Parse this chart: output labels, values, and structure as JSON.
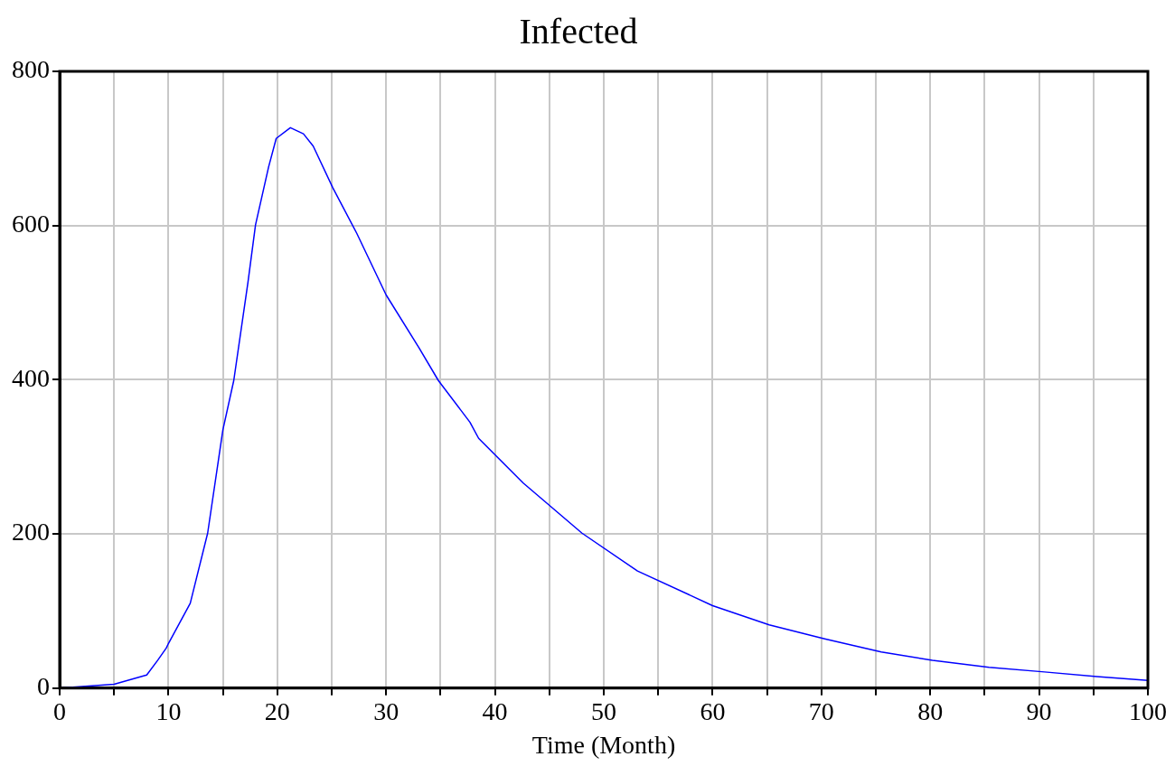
{
  "chart_data": {
    "type": "line",
    "title": "Infected",
    "xlabel": "Time (Month)",
    "x": [
      0,
      5,
      8,
      9,
      9.8,
      10,
      12,
      13.6,
      15,
      16,
      17.3,
      18,
      19.2,
      19.9,
      21.2,
      22.4,
      23.3,
      25.1,
      27.3,
      30,
      33,
      34.8,
      37.7,
      38.5,
      42.6,
      48,
      53.1,
      60,
      65.2,
      70.3,
      75.5,
      80.2,
      85.4,
      90.5,
      95.3,
      100
    ],
    "series": [
      {
        "color": "#0000ff",
        "values": [
          0,
          5,
          17,
          36,
          52,
          58,
          110,
          201,
          335,
          399,
          526,
          601,
          676,
          713,
          727,
          719,
          703,
          649,
          590,
          510,
          442,
          399,
          345,
          324,
          266,
          201,
          152,
          107,
          82,
          64,
          47,
          36,
          27,
          21,
          15,
          10
        ]
      }
    ],
    "xlim": [
      0,
      100
    ],
    "xticks": [
      0,
      {
        "value": 5,
        "label": null
      },
      10,
      {
        "value": 15,
        "label": null
      },
      20,
      {
        "value": 25,
        "label": null
      },
      30,
      {
        "value": 35,
        "label": null
      },
      40,
      {
        "value": 45,
        "label": null
      },
      50,
      {
        "value": 55,
        "label": null
      },
      60,
      {
        "value": 65,
        "label": null
      },
      70,
      {
        "value": 75,
        "label": null
      },
      80,
      {
        "value": 85,
        "label": null
      },
      90,
      {
        "value": 95,
        "label": null
      },
      100
    ],
    "ylim": [
      0,
      800
    ],
    "yticks": [
      0,
      200,
      400,
      600,
      800
    ],
    "grid": true,
    "marker": "none",
    "line_style": "solid"
  }
}
